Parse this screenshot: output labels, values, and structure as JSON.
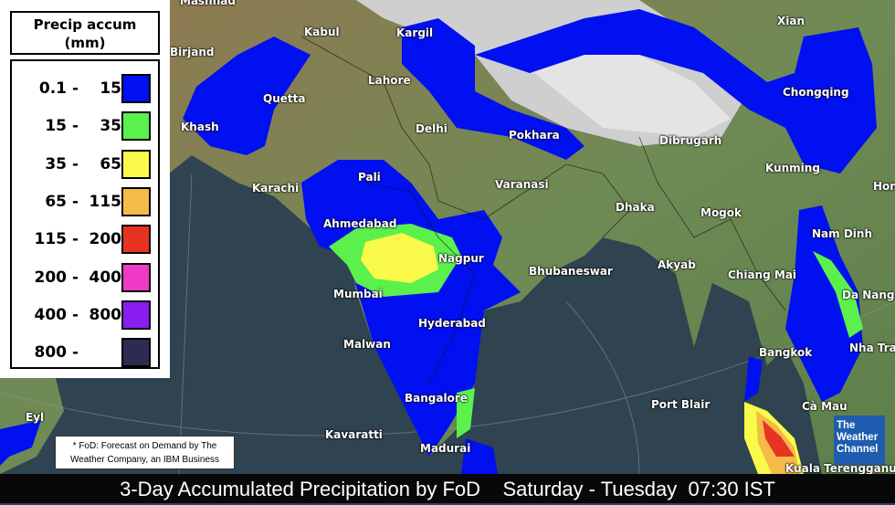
{
  "legend": {
    "title_line1": "Precip accum",
    "title_line2": "(mm)",
    "items": [
      {
        "low": "0.1",
        "high": "15",
        "color": "#0010f0"
      },
      {
        "low": "15",
        "high": "35",
        "color": "#5cf04c"
      },
      {
        "low": "35",
        "high": "65",
        "color": "#fafa4a"
      },
      {
        "low": "65",
        "high": "115",
        "color": "#f4bb48"
      },
      {
        "low": "115",
        "high": "200",
        "color": "#e83222"
      },
      {
        "low": "200",
        "high": "400",
        "color": "#ee3ac4"
      },
      {
        "low": "400",
        "high": "800",
        "color": "#8a1ef0"
      },
      {
        "low": "800",
        "high": "",
        "color": "#2c2b52"
      }
    ]
  },
  "cities": [
    "Mashhad",
    "Birjand",
    "Kabul",
    "Kargil",
    "Xian",
    "Quetta",
    "Lahore",
    "Chongqing",
    "Khash",
    "Delhi",
    "Pokhara",
    "Dibrugarh",
    "Kunming",
    "Karachi",
    "Pali",
    "Varanasi",
    "Hon",
    "Dhaka",
    "Mogok",
    "Ahmedabad",
    "Nam Dinh",
    "Nagpur",
    "Bhubaneswar",
    "Akyab",
    "Chiang Mai",
    "Mumbai",
    "Da Nang",
    "Hyderabad",
    "Malwan",
    "Bangkok",
    "Nha Tra",
    "Bangalore",
    "Port Blair",
    "Cà Mau",
    "Eyl",
    "Kavaratti",
    "Madurai",
    "Kuala Terengganu"
  ],
  "footnote": {
    "line1": "* FoD: Forecast on Demand by The",
    "line2": "Weather Company, an IBM Business"
  },
  "logo": {
    "line1": "The",
    "line2": "Weather",
    "line3": "Channel",
    "color": "#1f5cae"
  },
  "caption": "3-Day Accumulated Precipitation by FoD    Saturday - Tuesday  07:30 IST"
}
